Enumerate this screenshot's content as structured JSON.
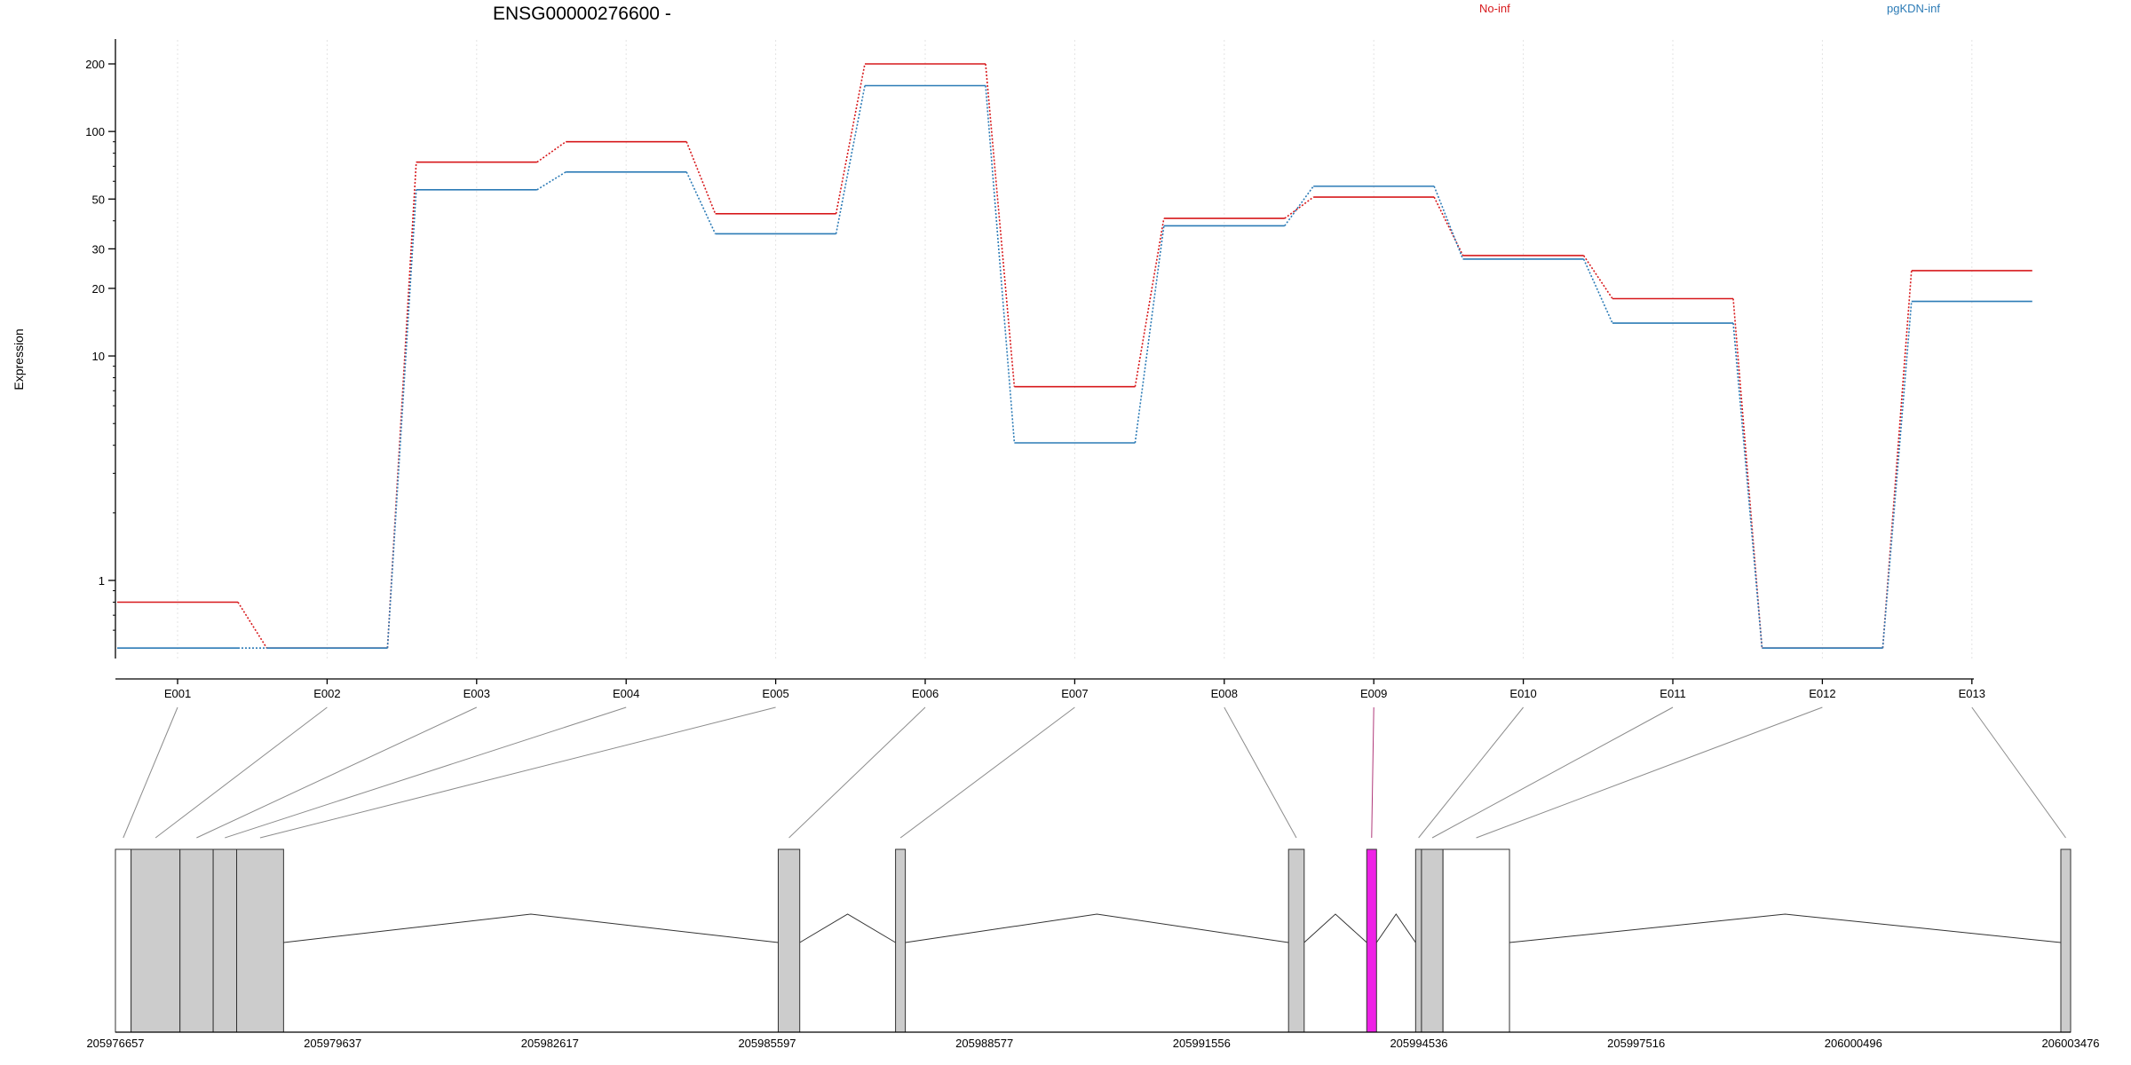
{
  "chart_data": {
    "type": "line",
    "title": "ENSG00000276600 -",
    "ylabel": "Expression",
    "xlabel": "",
    "y_scale": "log",
    "ylim": [
      0.5,
      260
    ],
    "y_ticks": [
      1,
      10,
      20,
      30,
      50,
      100,
      200
    ],
    "grid": "vertical light grey dotted lines at exon positions",
    "legend_placement": "top",
    "categories": [
      "E001",
      "E002",
      "E003",
      "E004",
      "E005",
      "E006",
      "E007",
      "E008",
      "E009",
      "E010",
      "E011",
      "E012",
      "E013"
    ],
    "series": [
      {
        "name": "No-inf",
        "color": "#d7191c",
        "values": [
          0.8,
          0.5,
          73,
          90,
          43,
          200,
          7.3,
          41,
          51,
          28,
          18,
          0.5,
          24
        ]
      },
      {
        "name": "pgKDN-inf",
        "color": "#2c7bb6",
        "values": [
          0.5,
          0.5,
          55,
          66,
          35,
          160,
          4.1,
          38,
          57,
          27,
          14,
          0.5,
          17.5
        ]
      }
    ],
    "gene_model": {
      "coordinate_labels": [
        "205976657",
        "205979637",
        "205982617",
        "205985597",
        "205988577",
        "205991556",
        "205994536",
        "205997516",
        "206000496",
        "206003476"
      ],
      "highlighted_exon": "E009",
      "highlight_color": "#ee22e6",
      "exon_color": "#cccccc"
    }
  }
}
